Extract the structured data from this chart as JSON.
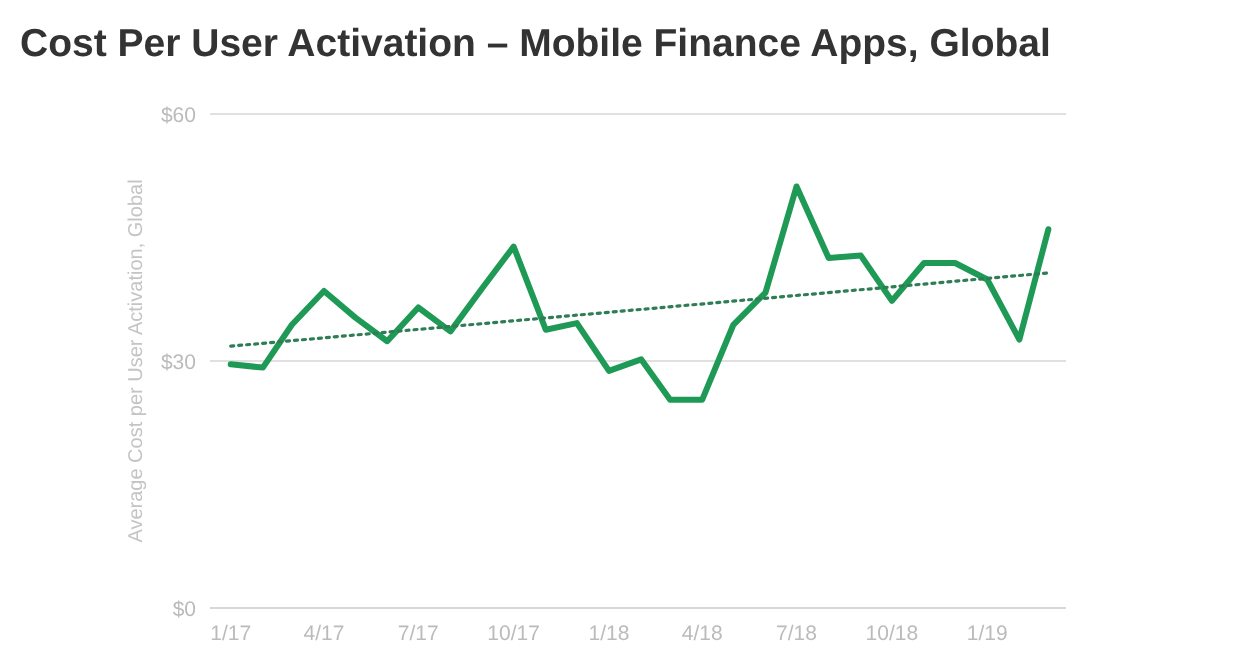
{
  "chart_data": {
    "type": "line",
    "title": "Cost Per User Activation – Mobile Finance Apps, Global",
    "ylabel": "Average Cost per User Activation, Global",
    "x": [
      "2017-01",
      "2017-02",
      "2017-03",
      "2017-04",
      "2017-05",
      "2017-06",
      "2017-07",
      "2017-08",
      "2017-09",
      "2017-10",
      "2017-11",
      "2017-12",
      "2018-01",
      "2018-02",
      "2018-03",
      "2018-04",
      "2018-05",
      "2018-06",
      "2018-07",
      "2018-08",
      "2018-09",
      "2018-10",
      "2018-11",
      "2018-12",
      "2019-01",
      "2019-02",
      "2019-03"
    ],
    "series": [
      {
        "color": "#1f9a56",
        "values": [
          29.6,
          29.2,
          34.4,
          38.5,
          35.3,
          32.4,
          36.5,
          33.6,
          38.9,
          43.9,
          33.8,
          34.6,
          28.8,
          30.2,
          25.3,
          25.3,
          34.4,
          38.3,
          51.2,
          42.5,
          42.8,
          37.3,
          41.9,
          41.9,
          39.9,
          32.6,
          46.0
        ]
      },
      {
        "type": "line",
        "color": "#2e7d55",
        "line_style": "dotted",
        "x": [
          "2017-01",
          "2019-03"
        ],
        "values": [
          31.8,
          40.7
        ]
      }
    ],
    "xlim": [
      "2016-12-12",
      "2019-03-18"
    ],
    "xticks": [
      {
        "value": "2017-01",
        "label": "1/17"
      },
      {
        "value": "2017-04",
        "label": "4/17"
      },
      {
        "value": "2017-07",
        "label": "7/17"
      },
      {
        "value": "2017-10",
        "label": "10/17"
      },
      {
        "value": "2018-01",
        "label": "1/18"
      },
      {
        "value": "2018-04",
        "label": "4/18"
      },
      {
        "value": "2018-07",
        "label": "7/18"
      },
      {
        "value": "2018-10",
        "label": "10/18"
      },
      {
        "value": "2019-01",
        "label": "1/19"
      }
    ],
    "ylim": [
      0,
      60
    ],
    "yticks": [
      {
        "value": 0,
        "label": "$0"
      },
      {
        "value": 30,
        "label": "$30"
      },
      {
        "value": 60,
        "label": "$60"
      }
    ],
    "grid": "y",
    "marker": "none",
    "line_style": "solid"
  }
}
